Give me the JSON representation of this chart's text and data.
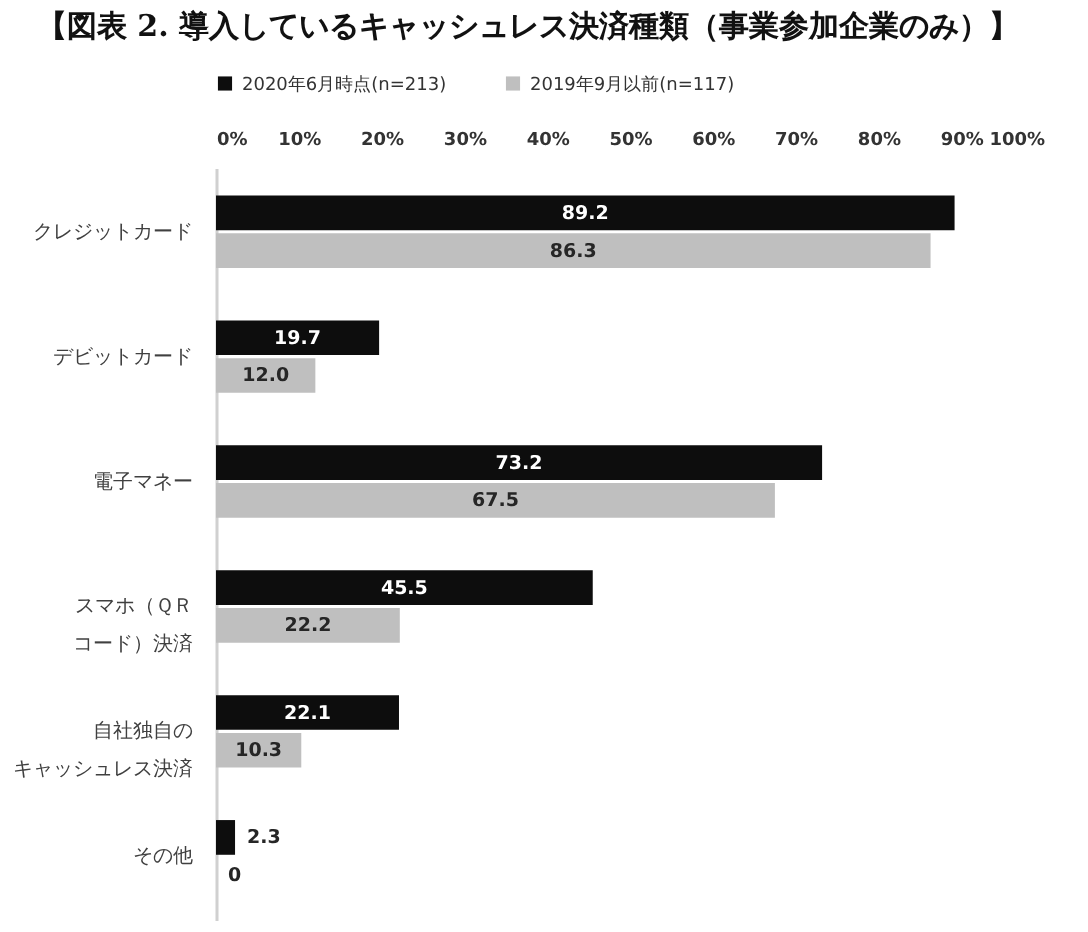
{
  "chart_data": {
    "type": "bar",
    "title": "【図表 2. 導入しているキャッシュレス決済種類（事業参加企業のみ）】",
    "categories": [
      "クレジットカード",
      "デビットカード",
      "電子マネー",
      "スマホ（ＱＲコード）決済",
      "自社独自のキャッシュレス決済",
      "その他"
    ],
    "orientation": "horizontal",
    "series": [
      {
        "name": "2020年6月時点(n=213)",
        "color": "#0d0d0d",
        "values": [
          89.2,
          19.7,
          73.2,
          45.5,
          22.1,
          2.3
        ],
        "value_labels": [
          "89.2",
          "19.7",
          "73.2",
          "45.5",
          "22.1",
          "2.3"
        ]
      },
      {
        "name": "2019年9月以前(n=117)",
        "color": "#bfbfbf",
        "values": [
          86.3,
          12.0,
          67.5,
          22.2,
          10.3,
          0
        ],
        "value_labels": [
          "86.3",
          "12.0",
          "67.5",
          "22.2",
          "10.3",
          "0"
        ]
      }
    ],
    "xlim": [
      0,
      100
    ],
    "xticks": [
      {
        "value": 0,
        "label": "0%"
      },
      {
        "value": 10,
        "label": "10%"
      },
      {
        "value": 20,
        "label": "20%"
      },
      {
        "value": 30,
        "label": "30%"
      },
      {
        "value": 40,
        "label": "40%"
      },
      {
        "value": 50,
        "label": "50%"
      },
      {
        "value": 60,
        "label": "60%"
      },
      {
        "value": 70,
        "label": "70%"
      },
      {
        "value": 80,
        "label": "80%"
      },
      {
        "value": 90,
        "label": "90%"
      },
      {
        "value": 100,
        "label": "100%"
      }
    ],
    "legend": "top"
  }
}
